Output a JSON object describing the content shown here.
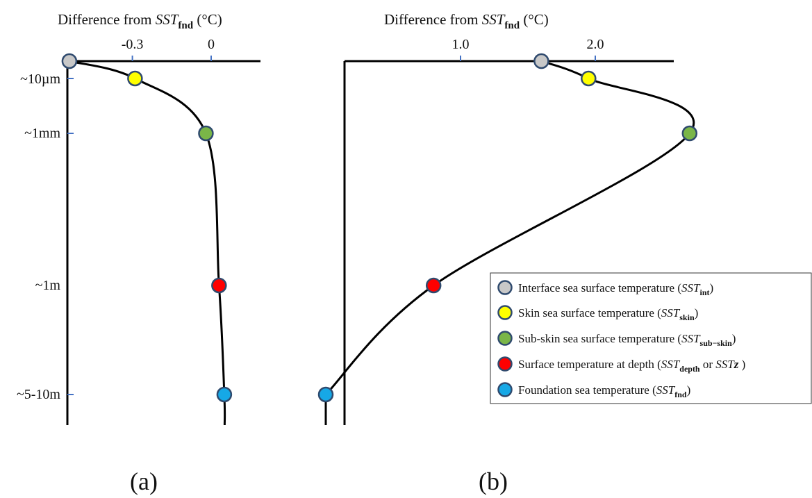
{
  "title_prefix": "Difference from ",
  "title_var": "SST",
  "title_sub": "fnd",
  "title_unit": " (°C)",
  "depth_labels": [
    "~10µm",
    "~1mm",
    "~1m",
    "~5-10m"
  ],
  "panel_labels": [
    "(a)",
    "(b)"
  ],
  "colors": {
    "int": "#c8c8c8",
    "skin": "#ffff00",
    "subskin": "#7ab648",
    "depth": "#ff0000",
    "fnd": "#16a8e6",
    "marker_edge": "#2f4a6e",
    "tick_blue": "#4472c4"
  },
  "legend": [
    {
      "key": "int",
      "prefix": "Interface sea surface temperature (",
      "sym": "SST",
      "sub": "int",
      "mid": "",
      "sym2": "",
      "sub2": "",
      "suffix": ")"
    },
    {
      "key": "skin",
      "prefix": "Skin sea surface temperature (",
      "sym": "SST",
      "sub": "skin",
      "mid": "",
      "sym2": "",
      "sub2": "",
      "suffix": ")"
    },
    {
      "key": "subskin",
      "prefix": "Sub-skin sea surface temperature (",
      "sym": "SST",
      "sub": "sub−skin",
      "mid": "",
      "sym2": "",
      "sub2": "",
      "suffix": ")"
    },
    {
      "key": "depth",
      "prefix": "Surface temperature at depth (",
      "sym": "SST",
      "sub": "depth",
      "mid": " or ",
      "sym2": "SST",
      "sub2": "z",
      "suffix": " )"
    },
    {
      "key": "fnd",
      "prefix": "Foundation sea temperature (",
      "sym": "SST",
      "sub": "fnd",
      "mid": "",
      "sym2": "",
      "sub2": "",
      "suffix": ")"
    }
  ],
  "chart_data": [
    {
      "type": "line",
      "panel": "(a)",
      "x_ticks": [
        "-0.3",
        "0"
      ],
      "x_tick_values": [
        -0.3,
        0
      ],
      "depth_levels": [
        "interface",
        "~10µm",
        "~1mm",
        "~1m",
        "~5-10m"
      ],
      "points": [
        {
          "key": "int",
          "depth": "interface",
          "x": -0.54
        },
        {
          "key": "skin",
          "depth": "~10µm",
          "x": -0.29
        },
        {
          "key": "subskin",
          "depth": "~1mm",
          "x": -0.02
        },
        {
          "key": "depth",
          "depth": "~1m",
          "x": 0.03
        },
        {
          "key": "fnd",
          "depth": "~5-10m",
          "x": 0.05
        }
      ]
    },
    {
      "type": "line",
      "panel": "(b)",
      "x_ticks": [
        "1.0",
        "2.0"
      ],
      "x_tick_values": [
        1.0,
        2.0
      ],
      "depth_levels": [
        "interface",
        "~10µm",
        "~1mm",
        "~1m",
        "~5-10m"
      ],
      "points": [
        {
          "key": "int",
          "depth": "interface",
          "x": 1.6
        },
        {
          "key": "skin",
          "depth": "~10µm",
          "x": 1.95
        },
        {
          "key": "subskin",
          "depth": "~1mm",
          "x": 2.7
        },
        {
          "key": "depth",
          "depth": "~1m",
          "x": 0.8
        },
        {
          "key": "fnd",
          "depth": "~5-10m",
          "x": 0.0
        }
      ]
    }
  ]
}
